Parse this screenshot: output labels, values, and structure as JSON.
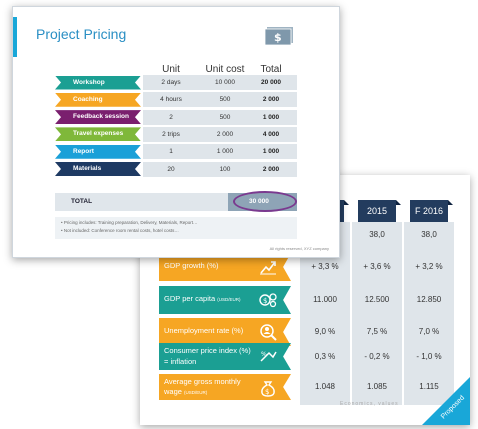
{
  "slide1": {
    "title": "Project Pricing",
    "headers": {
      "unit": "Unit",
      "unit_cost": "Unit cost",
      "total": "Total"
    },
    "rows": [
      {
        "label": "Workshop",
        "unit": "2 days",
        "cost": "10 000",
        "total": "20 000",
        "color": "#1b9f93"
      },
      {
        "label": "Coaching",
        "unit": "4 hours",
        "cost": "500",
        "total": "2 000",
        "color": "#f6a623"
      },
      {
        "label": "Feedback session",
        "unit": "2",
        "cost": "500",
        "total": "1 000",
        "color": "#7a1f6e"
      },
      {
        "label": "Travel expenses",
        "unit": "2 trips",
        "cost": "2 000",
        "total": "4 000",
        "color": "#7fb83a"
      },
      {
        "label": "Report",
        "unit": "1",
        "cost": "1 000",
        "total": "1 000",
        "color": "#1aa0d8"
      },
      {
        "label": "Materials",
        "unit": "20",
        "cost": "100",
        "total": "2 000",
        "color": "#1e3a63"
      }
    ],
    "total_label": "TOTAL",
    "total_value": "30 000",
    "notes": [
      "Pricing includes: Training preparation, Delivery, Materials, Report…",
      "Not included: Conference room rental costs, hotel costs…"
    ],
    "copyright": "All rights reserved, XYZ company",
    "money_icon": "dollar-bill-icon"
  },
  "slide2": {
    "years": [
      "",
      "2015",
      "F 2016"
    ],
    "top_row": [
      "",
      "38,0",
      "38,0"
    ],
    "indicators": [
      {
        "label": "GDP growth (%)",
        "icon": "growth-chart-icon",
        "color": "#f6a623",
        "values": [
          "+ 3,3 %",
          "+ 3,6 %",
          "+ 3,2 %"
        ]
      },
      {
        "label": "GDP per capita",
        "sub": "(USD/EUR)",
        "icon": "dollar-gear-icon",
        "color": "#1b9f93",
        "values": [
          "11.000",
          "12.500",
          "12.850"
        ]
      },
      {
        "label": "Unemployment rate (%)",
        "icon": "person-search-icon",
        "color": "#f6a623",
        "values": [
          "9,0 %",
          "7,5 %",
          "7,0 %"
        ]
      },
      {
        "label": "Consumer price index (%)",
        "label2": "= inflation",
        "icon": "percent-arrow-icon",
        "color": "#1b9f93",
        "values": [
          "0,3 %",
          "- 0,2 %",
          "- 1,0 %"
        ]
      },
      {
        "label": "Average gross monthly",
        "label2": "wage",
        "sub": "(USD/EUR)",
        "icon": "money-bag-icon",
        "color": "#f6a623",
        "values": [
          "1.048",
          "1.085",
          "1.115"
        ]
      }
    ],
    "corner_text": "Proposed",
    "watermark": "Economics, values"
  }
}
